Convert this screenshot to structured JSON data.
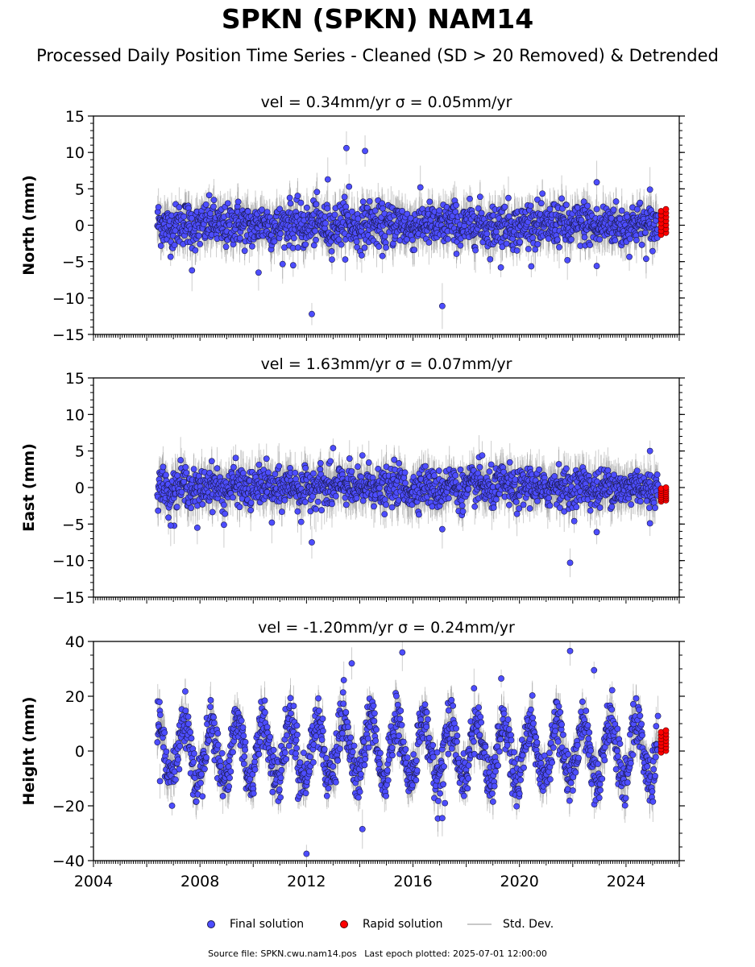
{
  "header": {
    "title": "SPKN (SPKN) NAM14",
    "subtitle": "Processed Daily Position Time Series - Cleaned (SD > 20 Removed) & Detrended"
  },
  "legend": {
    "final": "Final solution",
    "rapid": "Rapid solution",
    "std": "Std. Dev."
  },
  "footer": {
    "source": "Source file: SPKN.cwu.nam14.pos",
    "last_epoch": "Last epoch plotted: 2025-07-01 12:00:00"
  },
  "colors": {
    "final": "#4d4dff",
    "rapid": "#ff0000",
    "std_dev": "#c8c8c8"
  },
  "chart_data": [
    {
      "type": "scatter",
      "title": "vel = 0.34mm/yr   σ = 0.05mm/yr",
      "ylabel": "North (mm)",
      "xlim": [
        2004,
        2026
      ],
      "ylim": [
        -15,
        15
      ],
      "yticks": [
        -15,
        -10,
        -5,
        0,
        5,
        10,
        15
      ],
      "ytick_labels": [
        "−15",
        "−10",
        "−5",
        "0",
        "5",
        "10",
        "15"
      ],
      "grid": false,
      "data_range": [
        2006.4,
        2025.2
      ],
      "seasonal_amplitude": 0.4,
      "noise": 1.5,
      "std_dev": 2.5,
      "velocity_mm_yr": 0.34,
      "sigma_mm_yr": 0.05,
      "outliers": [
        [
          2007.7,
          -6.2
        ],
        [
          2010.2,
          -6.5
        ],
        [
          2011.5,
          -5.5
        ],
        [
          2012.2,
          -12.2
        ],
        [
          2012.8,
          6.3
        ],
        [
          2013.5,
          10.6
        ],
        [
          2013.6,
          5.3
        ],
        [
          2014.2,
          10.2
        ],
        [
          2017.1,
          -11.1
        ],
        [
          2019.3,
          -5.8
        ],
        [
          2022.9,
          5.9
        ],
        [
          2022.9,
          -5.6
        ],
        [
          2024.9,
          4.9
        ],
        [
          2021.8,
          -4.8
        ]
      ],
      "rapid_x": [
        2025.32,
        2025.5
      ],
      "rapid_y": [
        -1.3,
        2.2
      ]
    },
    {
      "type": "scatter",
      "title": "vel = 1.63mm/yr   σ = 0.07mm/yr",
      "ylabel": "East (mm)",
      "xlim": [
        2004,
        2026
      ],
      "ylim": [
        -15,
        15
      ],
      "yticks": [
        -15,
        -10,
        -5,
        0,
        5,
        10,
        15
      ],
      "ytick_labels": [
        "−15",
        "−10",
        "−5",
        "0",
        "5",
        "10",
        "15"
      ],
      "grid": false,
      "data_range": [
        2006.4,
        2025.2
      ],
      "seasonal_amplitude": 0.5,
      "noise": 1.3,
      "std_dev": 2.5,
      "velocity_mm_yr": 1.63,
      "sigma_mm_yr": 0.07,
      "outliers": [
        [
          2006.9,
          -5.2
        ],
        [
          2007.9,
          -5.5
        ],
        [
          2008.9,
          -5.1
        ],
        [
          2010.7,
          -4.8
        ],
        [
          2011.8,
          -4.7
        ],
        [
          2012.2,
          -7.5
        ],
        [
          2012.9,
          3.6
        ],
        [
          2013.0,
          5.4
        ],
        [
          2014.1,
          4.4
        ],
        [
          2017.1,
          -5.7
        ],
        [
          2018.6,
          4.4
        ],
        [
          2021.9,
          -10.3
        ],
        [
          2022.9,
          -6.1
        ],
        [
          2024.9,
          5.0
        ],
        [
          2024.9,
          -4.9
        ]
      ],
      "rapid_x": [
        2025.32,
        2025.5
      ],
      "rapid_y": [
        -1.9,
        0.0
      ]
    },
    {
      "type": "scatter",
      "title": "vel = -1.20mm/yr   σ = 0.24mm/yr",
      "ylabel": "Height (mm)",
      "xlim": [
        2004,
        2026
      ],
      "xticks": [
        2004,
        2008,
        2012,
        2016,
        2020,
        2024
      ],
      "xtick_labels": [
        "2004",
        "2008",
        "2012",
        "2016",
        "2020",
        "2024"
      ],
      "ylim": [
        -40,
        40
      ],
      "yticks": [
        -40,
        -20,
        0,
        20,
        40
      ],
      "ytick_labels": [
        "−40",
        "−20",
        "0",
        "20",
        "40"
      ],
      "grid": false,
      "data_range": [
        2006.4,
        2025.2
      ],
      "seasonal_amplitude": 11,
      "noise": 4.5,
      "std_dev": 6,
      "velocity_mm_yr": -1.2,
      "sigma_mm_yr": 0.24,
      "outliers": [
        [
          2012.0,
          -37.5
        ],
        [
          2014.1,
          -28.5
        ],
        [
          2015.6,
          36.0
        ],
        [
          2017.1,
          -24.5
        ],
        [
          2017.2,
          -19.0
        ],
        [
          2021.9,
          36.5
        ],
        [
          2013.7,
          32.0
        ],
        [
          2006.5,
          -11.0
        ],
        [
          2022.8,
          29.5
        ]
      ],
      "rapid_x": [
        2025.32,
        2025.5
      ],
      "rapid_y": [
        -0.5,
        7.5
      ]
    }
  ]
}
